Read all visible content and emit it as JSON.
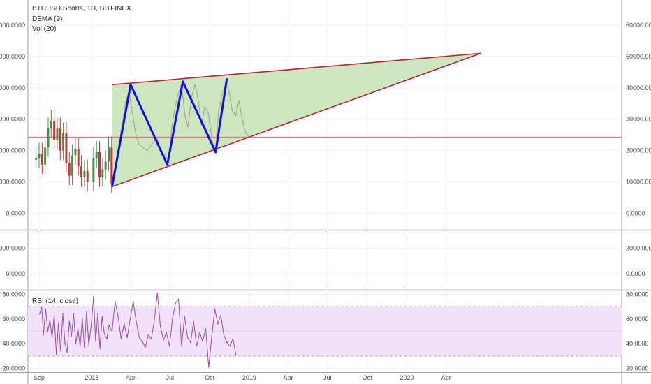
{
  "chart_data": {
    "type": "line",
    "legend": {
      "symbol": "BTCUSD Shorts, 1D, BITFINEX",
      "indicators": [
        "DEMA (9)",
        "Vol (20)"
      ],
      "rsi_label": "RSI (14, close)"
    },
    "x_ticks": [
      "Sep",
      "2018",
      "Apr",
      "Jul",
      "Oct",
      "2019",
      "Apr",
      "Jul",
      "Oct",
      "2020",
      "Apr"
    ],
    "panels": {
      "price": {
        "ylim": [
          -5000,
          68000
        ],
        "ticks": [
          "60000.0000",
          "50000.0000",
          "40000.0000",
          "30000.0000",
          "20000.0000",
          "10000.0000",
          "0.0000"
        ],
        "tick_values": [
          60000,
          50000,
          40000,
          30000,
          20000,
          10000,
          0
        ],
        "horizontal_line": 24300,
        "candles": [
          {
            "date": "2017-08-25",
            "value": 17500
          },
          {
            "date": "2017-09-01",
            "value": 19000
          },
          {
            "date": "2017-09-08",
            "value": 15500
          },
          {
            "date": "2017-09-15",
            "value": 21000
          },
          {
            "date": "2017-09-22",
            "value": 27000
          },
          {
            "date": "2017-09-29",
            "value": 29500
          },
          {
            "date": "2017-10-06",
            "value": 23500
          },
          {
            "date": "2017-10-13",
            "value": 27000
          },
          {
            "date": "2017-10-20",
            "value": 20000
          },
          {
            "date": "2017-10-27",
            "value": 25500
          },
          {
            "date": "2017-11-03",
            "value": 16000
          },
          {
            "date": "2017-11-10",
            "value": 12000
          },
          {
            "date": "2017-11-17",
            "value": 18500
          },
          {
            "date": "2017-11-24",
            "value": 20500
          },
          {
            "date": "2017-12-01",
            "value": 15000
          },
          {
            "date": "2017-12-08",
            "value": 11500
          },
          {
            "date": "2017-12-15",
            "value": 13500
          },
          {
            "date": "2017-12-22",
            "value": 10000
          },
          {
            "date": "2018-01-05",
            "value": 17500
          },
          {
            "date": "2018-01-12",
            "value": 19500
          },
          {
            "date": "2018-01-19",
            "value": 11500
          },
          {
            "date": "2018-01-26",
            "value": 14000
          },
          {
            "date": "2018-02-02",
            "value": 16500
          },
          {
            "date": "2018-02-09",
            "value": 21000
          },
          {
            "date": "2018-02-16",
            "value": 9500
          }
        ],
        "trendlines": [
          {
            "name": "resistance",
            "from": [
              "2018-02-17",
              41000
            ],
            "to": [
              "2020-06-20",
              51000
            ],
            "color": "#b02535"
          },
          {
            "name": "support",
            "from": [
              "2018-02-17",
              8500
            ],
            "to": [
              "2020-06-20",
              51000
            ],
            "color": "#b02535"
          }
        ],
        "zigzag": [
          [
            "2018-02-17",
            8500
          ],
          [
            "2018-04-01",
            41000
          ],
          [
            "2018-06-25",
            15500
          ],
          [
            "2018-07-31",
            42000
          ],
          [
            "2018-10-15",
            19500
          ],
          [
            "2018-11-10",
            43000
          ]
        ],
        "series": [
          {
            "name": "",
            "color": "#b2a68a",
            "values": [
              [
                "2018-02-17",
                9000
              ],
              [
                "2018-02-25",
                15000
              ],
              [
                "2018-03-05",
                22000
              ],
              [
                "2018-03-12",
                28000
              ],
              [
                "2018-03-20",
                35000
              ],
              [
                "2018-03-28",
                39000
              ],
              [
                "2018-04-05",
                32000
              ],
              [
                "2018-04-12",
                26000
              ],
              [
                "2018-04-20",
                22000
              ],
              [
                "2018-04-30",
                21000
              ],
              [
                "2018-05-10",
                20000
              ],
              [
                "2018-05-20",
                22000
              ],
              [
                "2018-06-01",
                24000
              ],
              [
                "2018-06-10",
                20000
              ],
              [
                "2018-06-20",
                18500
              ],
              [
                "2018-06-28",
                17000
              ],
              [
                "2018-07-05",
                27000
              ],
              [
                "2018-07-12",
                33000
              ],
              [
                "2018-07-20",
                38000
              ],
              [
                "2018-07-28",
                41000
              ],
              [
                "2018-08-05",
                31000
              ],
              [
                "2018-08-12",
                27500
              ],
              [
                "2018-08-20",
                37000
              ],
              [
                "2018-08-28",
                41000
              ],
              [
                "2018-09-05",
                36000
              ],
              [
                "2018-09-12",
                28000
              ],
              [
                "2018-09-20",
                34000
              ],
              [
                "2018-09-28",
                32000
              ],
              [
                "2018-10-08",
                22000
              ],
              [
                "2018-10-15",
                20500
              ],
              [
                "2018-10-22",
                33000
              ],
              [
                "2018-10-30",
                38000
              ],
              [
                "2018-11-07",
                41000
              ],
              [
                "2018-11-15",
                39000
              ],
              [
                "2018-11-22",
                33000
              ],
              [
                "2018-11-30",
                31000
              ],
              [
                "2018-12-08",
                36000
              ],
              [
                "2018-12-15",
                30500
              ],
              [
                "2018-12-22",
                26000
              ],
              [
                "2018-12-30",
                24500
              ]
            ]
          }
        ]
      },
      "volume": {
        "ylim": [
          -1200,
          3400
        ],
        "ticks": [
          "2000.0000",
          "0.0000"
        ],
        "tick_values": [
          2000,
          0
        ]
      },
      "rsi": {
        "ylim": [
          17,
          83
        ],
        "ticks": [
          "80.0000",
          "60.0000",
          "40.0000",
          "20.0000"
        ],
        "tick_values": [
          80,
          60,
          40,
          20
        ],
        "band": [
          30,
          70
        ],
        "mid": 50,
        "series": [
          {
            "name": "",
            "color": "#9b4c9b",
            "values": [
              [
                "2017-09-02",
                64
              ],
              [
                "2017-09-07",
                70
              ],
              [
                "2017-09-11",
                47
              ],
              [
                "2017-09-16",
                68
              ],
              [
                "2017-09-21",
                50
              ],
              [
                "2017-09-26",
                59
              ],
              [
                "2017-10-01",
                45
              ],
              [
                "2017-10-06",
                63
              ],
              [
                "2017-10-11",
                31
              ],
              [
                "2017-10-16",
                57
              ],
              [
                "2017-10-21",
                34
              ],
              [
                "2017-10-26",
                64
              ],
              [
                "2017-10-31",
                40
              ],
              [
                "2017-11-05",
                33
              ],
              [
                "2017-11-10",
                58
              ],
              [
                "2017-11-15",
                46
              ],
              [
                "2017-11-20",
                64
              ],
              [
                "2017-11-25",
                40
              ],
              [
                "2017-11-30",
                52
              ],
              [
                "2017-12-05",
                38
              ],
              [
                "2017-12-10",
                60
              ],
              [
                "2017-12-15",
                37
              ],
              [
                "2017-12-20",
                66
              ],
              [
                "2017-12-25",
                39
              ],
              [
                "2017-12-31",
                56
              ],
              [
                "2018-01-05",
                78
              ],
              [
                "2018-01-10",
                42
              ],
              [
                "2018-01-15",
                64
              ],
              [
                "2018-01-20",
                36
              ],
              [
                "2018-01-25",
                62
              ],
              [
                "2018-01-30",
                48
              ],
              [
                "2018-02-05",
                44
              ],
              [
                "2018-02-10",
                55
              ],
              [
                "2018-02-17",
                50
              ],
              [
                "2018-02-24",
                74
              ],
              [
                "2018-03-03",
                62
              ],
              [
                "2018-03-10",
                44
              ],
              [
                "2018-03-17",
                56
              ],
              [
                "2018-03-24",
                45
              ],
              [
                "2018-03-31",
                60
              ],
              [
                "2018-04-07",
                74
              ],
              [
                "2018-04-14",
                58
              ],
              [
                "2018-04-21",
                45
              ],
              [
                "2018-04-28",
                42
              ],
              [
                "2018-05-05",
                37
              ],
              [
                "2018-05-12",
                47
              ],
              [
                "2018-05-19",
                44
              ],
              [
                "2018-05-26",
                59
              ],
              [
                "2018-06-02",
                81
              ],
              [
                "2018-06-09",
                54
              ],
              [
                "2018-06-16",
                43
              ],
              [
                "2018-06-23",
                49
              ],
              [
                "2018-06-30",
                38
              ],
              [
                "2018-07-07",
                60
              ],
              [
                "2018-07-14",
                73
              ],
              [
                "2018-07-21",
                76
              ],
              [
                "2018-07-28",
                38
              ],
              [
                "2018-08-04",
                62
              ],
              [
                "2018-08-11",
                45
              ],
              [
                "2018-08-18",
                41
              ],
              [
                "2018-08-25",
                58
              ],
              [
                "2018-09-01",
                38
              ],
              [
                "2018-09-08",
                49
              ],
              [
                "2018-09-15",
                42
              ],
              [
                "2018-09-22",
                52
              ],
              [
                "2018-09-29",
                21
              ],
              [
                "2018-10-06",
                46
              ],
              [
                "2018-10-13",
                68
              ],
              [
                "2018-10-20",
                56
              ],
              [
                "2018-10-27",
                63
              ],
              [
                "2018-11-03",
                47
              ],
              [
                "2018-11-10",
                41
              ],
              [
                "2018-11-17",
                38
              ],
              [
                "2018-11-24",
                44
              ],
              [
                "2018-12-01",
                31
              ]
            ]
          }
        ]
      }
    }
  }
}
